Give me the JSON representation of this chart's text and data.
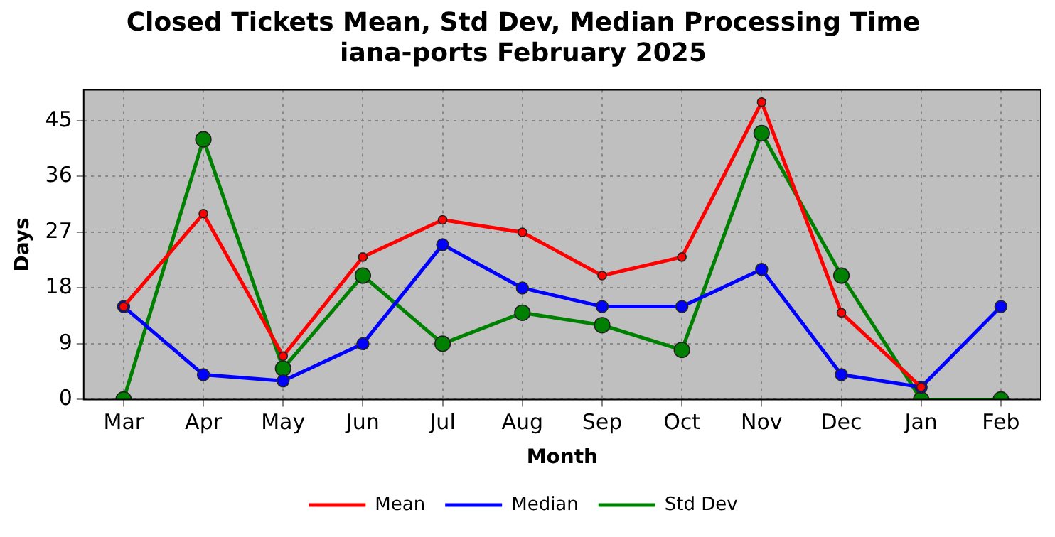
{
  "chart_data": {
    "type": "line",
    "title": "Closed Tickets Mean, Std Dev, Median Processing Time\niana-ports February 2025",
    "xlabel": "Month",
    "ylabel": "Days",
    "categories": [
      "Mar",
      "Apr",
      "May",
      "Jun",
      "Jul",
      "Aug",
      "Sep",
      "Oct",
      "Nov",
      "Dec",
      "Jan",
      "Feb"
    ],
    "series": [
      {
        "name": "Mean",
        "color": "#ff0000",
        "values": [
          15,
          30,
          7,
          23,
          29,
          27,
          20,
          23,
          48,
          14,
          2,
          null
        ]
      },
      {
        "name": "Median",
        "color": "#0000ff",
        "values": [
          15,
          4,
          3,
          9,
          25,
          18,
          15,
          15,
          21,
          4,
          2,
          15
        ]
      },
      {
        "name": "Std Dev",
        "color": "#008000",
        "values": [
          0,
          42,
          5,
          20,
          9,
          14,
          12,
          8,
          43,
          20,
          0,
          0
        ]
      }
    ],
    "ylim": [
      0,
      50
    ],
    "yticks": [
      0,
      9,
      18,
      27,
      36,
      45
    ],
    "grid": true,
    "legend": "bottom",
    "marker": "circle",
    "line_style": "solid"
  }
}
